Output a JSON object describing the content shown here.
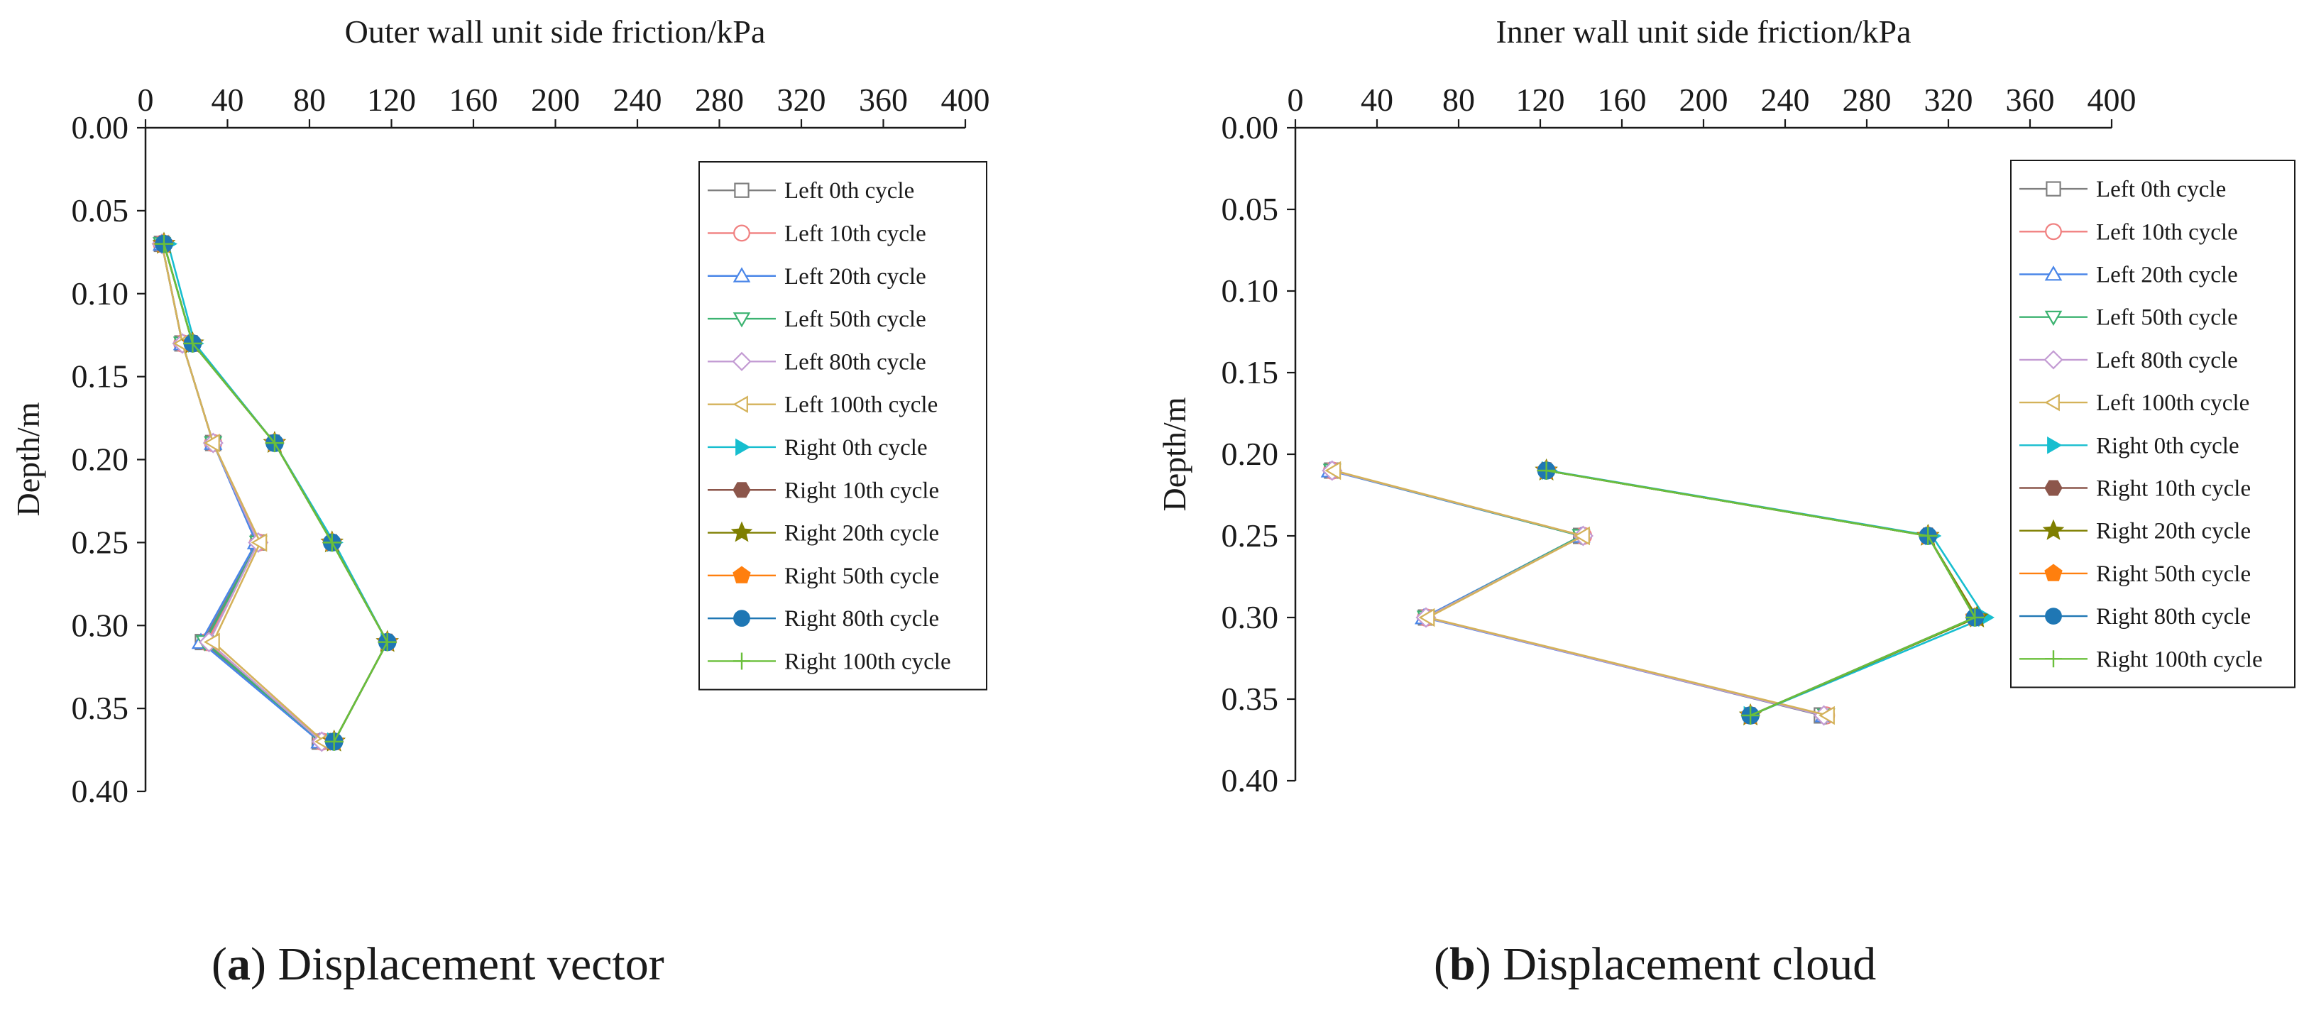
{
  "chart_data": [
    {
      "type": "line",
      "title": "Outer wall unit side friction/kPa",
      "xlabel": "Outer wall unit side friction/kPa",
      "ylabel": "Depth/m",
      "xlim": [
        0,
        400
      ],
      "ylim": [
        0.0,
        0.4
      ],
      "x_ticks": [
        "0",
        "40",
        "80",
        "120",
        "160",
        "200",
        "240",
        "280",
        "320",
        "360",
        "400"
      ],
      "y_ticks": [
        "0.00",
        "0.05",
        "0.10",
        "0.15",
        "0.20",
        "0.25",
        "0.30",
        "0.35",
        "0.40"
      ],
      "x_axis_position": "top",
      "y_axis_inverted": true,
      "legend_position": "right",
      "caption_letter": "a",
      "caption_text": "Displacement vector",
      "series": [
        {
          "name": "Left 0th cycle",
          "color": "#7f7f7f",
          "marker": "square-open",
          "depth": [
            0.07,
            0.13,
            0.19,
            0.25,
            0.31,
            0.37
          ],
          "friction": [
            8,
            18,
            33,
            55,
            28,
            85
          ]
        },
        {
          "name": "Left 10th cycle",
          "color": "#f08080",
          "marker": "circle-open",
          "depth": [
            0.07,
            0.13,
            0.19,
            0.25,
            0.31,
            0.37
          ],
          "friction": [
            8,
            18,
            33,
            55,
            30,
            86
          ]
        },
        {
          "name": "Left 20th cycle",
          "color": "#4a86e8",
          "marker": "triangle-up-open",
          "depth": [
            0.07,
            0.13,
            0.19,
            0.25,
            0.31,
            0.37
          ],
          "friction": [
            8,
            18,
            33,
            54,
            27,
            85
          ]
        },
        {
          "name": "Left 50th cycle",
          "color": "#3cb371",
          "marker": "triangle-down-open",
          "depth": [
            0.07,
            0.13,
            0.19,
            0.25,
            0.31,
            0.37
          ],
          "friction": [
            8,
            18,
            33,
            55,
            29,
            86
          ]
        },
        {
          "name": "Left 80th cycle",
          "color": "#c39bd3",
          "marker": "diamond-open",
          "depth": [
            0.07,
            0.13,
            0.19,
            0.25,
            0.31,
            0.37
          ],
          "friction": [
            8,
            18,
            33,
            55,
            31,
            86
          ]
        },
        {
          "name": "Left 100th cycle",
          "color": "#d4b25a",
          "marker": "triangle-left-open",
          "depth": [
            0.07,
            0.13,
            0.19,
            0.25,
            0.31,
            0.37
          ],
          "friction": [
            8,
            18,
            33,
            56,
            33,
            87
          ]
        },
        {
          "name": "Right 0th cycle",
          "color": "#17becf",
          "marker": "triangle-right-filled",
          "depth": [
            0.07,
            0.13,
            0.19,
            0.25,
            0.31,
            0.37
          ],
          "friction": [
            11,
            24,
            63,
            92,
            118,
            92
          ]
        },
        {
          "name": "Right 10th cycle",
          "color": "#8c564b",
          "marker": "hexagon-filled",
          "depth": [
            0.07,
            0.13,
            0.19,
            0.25,
            0.31,
            0.37
          ],
          "friction": [
            9,
            23,
            63,
            91,
            118,
            92
          ]
        },
        {
          "name": "Right 20th cycle",
          "color": "#7f7f00",
          "marker": "star-filled",
          "depth": [
            0.07,
            0.13,
            0.19,
            0.25,
            0.31,
            0.37
          ],
          "friction": [
            9,
            23,
            63,
            91,
            118,
            92
          ]
        },
        {
          "name": "Right 50th cycle",
          "color": "#ff7f0e",
          "marker": "pentagon-filled",
          "depth": [
            0.07,
            0.13,
            0.19,
            0.25,
            0.31,
            0.37
          ],
          "friction": [
            9,
            23,
            63,
            91,
            118,
            92
          ]
        },
        {
          "name": "Right 80th cycle",
          "color": "#1f77b4",
          "marker": "circle-filled",
          "depth": [
            0.07,
            0.13,
            0.19,
            0.25,
            0.31,
            0.37
          ],
          "friction": [
            9,
            23,
            63,
            91,
            118,
            92
          ]
        },
        {
          "name": "Right 100th cycle",
          "color": "#6abf3a",
          "marker": "plus",
          "depth": [
            0.07,
            0.13,
            0.19,
            0.25,
            0.31,
            0.37
          ],
          "friction": [
            9,
            23,
            63,
            91,
            118,
            92
          ]
        }
      ]
    },
    {
      "type": "line",
      "title": "Inner wall unit side friction/kPa",
      "xlabel": "Inner wall unit side friction/kPa",
      "ylabel": "Depth/m",
      "xlim": [
        0,
        400
      ],
      "ylim": [
        0.0,
        0.4
      ],
      "x_ticks": [
        "0",
        "40",
        "80",
        "120",
        "160",
        "200",
        "240",
        "280",
        "320",
        "360",
        "400"
      ],
      "y_ticks": [
        "0.00",
        "0.05",
        "0.10",
        "0.15",
        "0.20",
        "0.25",
        "0.30",
        "0.35",
        "0.40"
      ],
      "x_axis_position": "top",
      "y_axis_inverted": true,
      "legend_position": "right",
      "caption_letter": "b",
      "caption_text": "Displacement cloud",
      "series": [
        {
          "name": "Left 0th cycle",
          "color": "#7f7f7f",
          "marker": "square-open",
          "depth": [
            0.21,
            0.25,
            0.3,
            0.36
          ],
          "friction": [
            18,
            140,
            64,
            258
          ]
        },
        {
          "name": "Left 10th cycle",
          "color": "#f08080",
          "marker": "circle-open",
          "depth": [
            0.21,
            0.25,
            0.3,
            0.36
          ],
          "friction": [
            18,
            141,
            64,
            260
          ]
        },
        {
          "name": "Left 20th cycle",
          "color": "#4a86e8",
          "marker": "triangle-up-open",
          "depth": [
            0.21,
            0.25,
            0.3,
            0.36
          ],
          "friction": [
            17,
            140,
            63,
            259
          ]
        },
        {
          "name": "Left 50th cycle",
          "color": "#3cb371",
          "marker": "triangle-down-open",
          "depth": [
            0.21,
            0.25,
            0.3,
            0.36
          ],
          "friction": [
            18,
            140,
            64,
            260
          ]
        },
        {
          "name": "Left 80th cycle",
          "color": "#c39bd3",
          "marker": "diamond-open",
          "depth": [
            0.21,
            0.25,
            0.3,
            0.36
          ],
          "friction": [
            18,
            141,
            64,
            259
          ]
        },
        {
          "name": "Left 100th cycle",
          "color": "#d4b25a",
          "marker": "triangle-left-open",
          "depth": [
            0.21,
            0.25,
            0.3,
            0.36
          ],
          "friction": [
            19,
            141,
            65,
            261
          ]
        },
        {
          "name": "Right 0th cycle",
          "color": "#17becf",
          "marker": "triangle-right-filled",
          "depth": [
            0.21,
            0.25,
            0.3,
            0.36
          ],
          "friction": [
            124,
            312,
            338,
            223
          ]
        },
        {
          "name": "Right 10th cycle",
          "color": "#8c564b",
          "marker": "hexagon-filled",
          "depth": [
            0.21,
            0.25,
            0.3,
            0.36
          ],
          "friction": [
            123,
            310,
            333,
            223
          ]
        },
        {
          "name": "Right 20th cycle",
          "color": "#7f7f00",
          "marker": "star-filled",
          "depth": [
            0.21,
            0.25,
            0.3,
            0.36
          ],
          "friction": [
            123,
            310,
            334,
            223
          ]
        },
        {
          "name": "Right 50th cycle",
          "color": "#ff7f0e",
          "marker": "pentagon-filled",
          "depth": [
            0.21,
            0.25,
            0.3,
            0.36
          ],
          "friction": [
            123,
            310,
            333,
            223
          ]
        },
        {
          "name": "Right 80th cycle",
          "color": "#1f77b4",
          "marker": "circle-filled",
          "depth": [
            0.21,
            0.25,
            0.3,
            0.36
          ],
          "friction": [
            123,
            310,
            333,
            223
          ]
        },
        {
          "name": "Right 100th cycle",
          "color": "#6abf3a",
          "marker": "plus",
          "depth": [
            0.21,
            0.25,
            0.3,
            0.36
          ],
          "friction": [
            123,
            310,
            333,
            223
          ]
        }
      ]
    }
  ]
}
